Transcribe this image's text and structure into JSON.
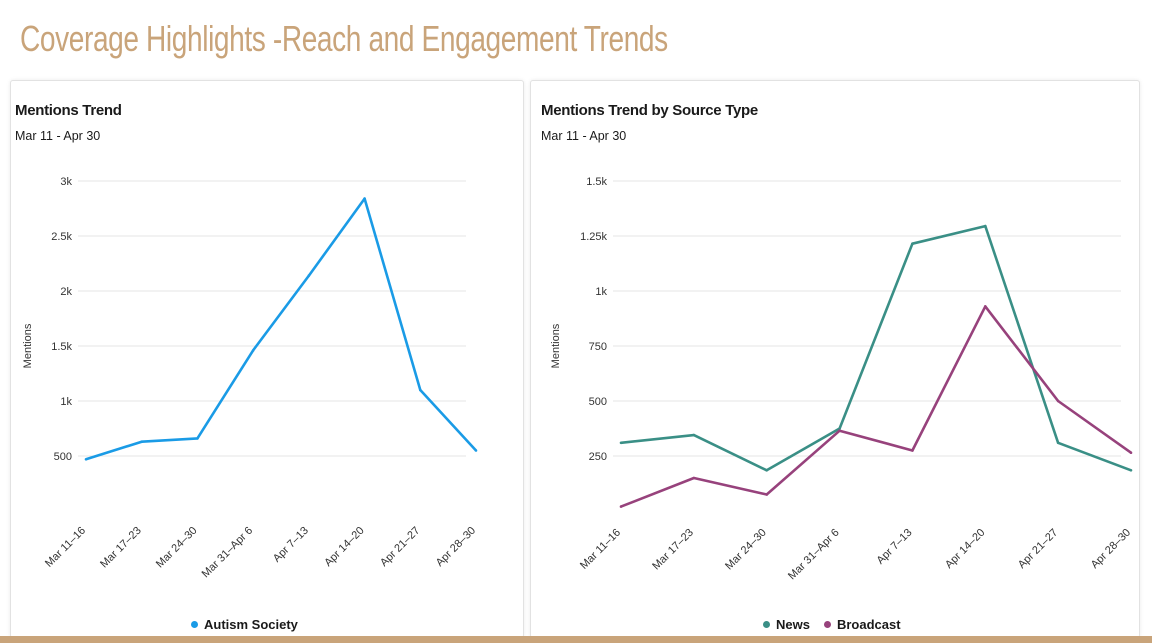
{
  "slide_title": "Coverage Highlights -Reach and Engagement Trends",
  "colors": {
    "title": "#c9a47a",
    "autism": "#1a9be6",
    "news": "#3a8f86",
    "broadcast": "#97427c",
    "grid": "#e6e6e6"
  },
  "chart_data": [
    {
      "type": "line",
      "title": "Mentions Trend",
      "subtitle": "Mar 11 - Apr 30",
      "ylabel": "Mentions",
      "ylim": [
        0,
        3000
      ],
      "yticks": [
        500,
        1000,
        1500,
        2000,
        2500,
        3000
      ],
      "ytick_labels": [
        "500",
        "1k",
        "1.5k",
        "2k",
        "2.5k",
        "3k"
      ],
      "categories": [
        "Mar 11–16",
        "Mar 17–23",
        "Mar 24–30",
        "Mar 31–Apr 6",
        "Apr 7–13",
        "Apr 14–20",
        "Apr 21–27",
        "Apr 28–30"
      ],
      "series": [
        {
          "name": "Autism Society",
          "color": "#1a9be6",
          "values": [
            470,
            630,
            660,
            1460,
            2140,
            2840,
            1100,
            550
          ]
        }
      ],
      "legend": "bottom",
      "grid": true
    },
    {
      "type": "line",
      "title": "Mentions Trend by Source Type",
      "subtitle": "Mar 11 - Apr 30",
      "ylabel": "Mentions",
      "ylim": [
        0,
        1500
      ],
      "yticks": [
        250,
        500,
        750,
        1000,
        1250,
        1500
      ],
      "ytick_labels": [
        "250",
        "500",
        "750",
        "1k",
        "1.25k",
        "1.5k"
      ],
      "categories": [
        "Mar 11–16",
        "Mar 17–23",
        "Mar 24–30",
        "Mar 31–Apr 6",
        "Apr 7–13",
        "Apr 14–20",
        "Apr 21–27",
        "Apr 28–30"
      ],
      "series": [
        {
          "name": "News",
          "color": "#3a8f86",
          "values": [
            310,
            345,
            185,
            375,
            1215,
            1295,
            310,
            185
          ]
        },
        {
          "name": "Broadcast",
          "color": "#97427c",
          "values": [
            20,
            150,
            75,
            365,
            275,
            930,
            500,
            265
          ]
        }
      ],
      "legend": "bottom",
      "grid": true
    }
  ]
}
